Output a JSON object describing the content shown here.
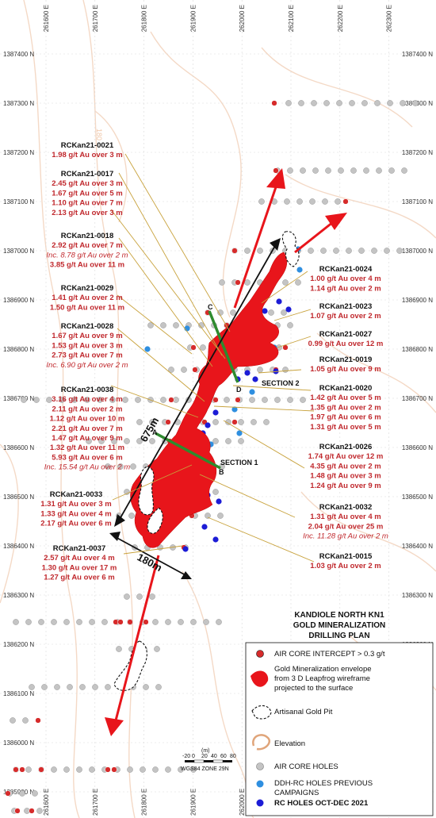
{
  "title_lines": [
    "KANDIOLE NORTH KN1",
    "GOLD MINERALIZATION",
    "DRILLING PLAN"
  ],
  "northings": [
    "1387400 N",
    "1387300 N",
    "1387200 N",
    "1387100 N",
    "1387000 N",
    "1386900 N",
    "1386800 N",
    "1386700 N",
    "1386600 N",
    "1386500 N",
    "1386400 N",
    "1386300 N",
    "1386200 N",
    "1386100 N",
    "1386000 N",
    "1385900 N"
  ],
  "eastings": [
    "261600 E",
    "261700 E",
    "261800 E",
    "261900 E",
    "262000 E",
    "262100 E",
    "262200 E",
    "262300 E"
  ],
  "contour_label": "180",
  "callouts": [
    {
      "name": "RCKan21-0021",
      "lines": [
        {
          "t": "1.98 g/t Au over 3 m",
          "i": false
        }
      ]
    },
    {
      "name": "RCKan21-0017",
      "lines": [
        {
          "t": "2.45 g/t Au over 3 m",
          "i": false
        },
        {
          "t": "1.67 g/t Au over 5 m",
          "i": false
        },
        {
          "t": "1.10 g/t Au over 7 m",
          "i": false
        },
        {
          "t": "2.13 g/t Au over 3 m",
          "i": false
        }
      ]
    },
    {
      "name": "RCKan21-0018",
      "lines": [
        {
          "t": "2.92 g/t Au over 7 m",
          "i": false
        },
        {
          "t": "Inc. 8.78 g/t Au over 2 m",
          "i": true
        },
        {
          "t": "3.85 g/t Au over 11 m",
          "i": false
        }
      ]
    },
    {
      "name": "RCKan21-0029",
      "lines": [
        {
          "t": "1.41 g/t Au over 2 m",
          "i": false
        },
        {
          "t": "1.50 g/t Au over 11 m",
          "i": false
        }
      ]
    },
    {
      "name": "RCKan21-0028",
      "lines": [
        {
          "t": "1.67 g/t Au over 9 m",
          "i": false
        },
        {
          "t": "1.53 g/t Au over 3 m",
          "i": false
        },
        {
          "t": "2.73 g/t Au over 7 m",
          "i": false
        },
        {
          "t": "Inc. 6.90 g/t Au over 2 m",
          "i": true
        }
      ]
    },
    {
      "name": "RCKan21-0038",
      "lines": [
        {
          "t": "3.16 g/t Au over 4 m",
          "i": false
        },
        {
          "t": "2.11 g/t Au over 2 m",
          "i": false
        },
        {
          "t": "1.12 g/t Au over 10 m",
          "i": false
        },
        {
          "t": "2.21 g/t Au over 7 m",
          "i": false
        },
        {
          "t": "1.47 g/t Au over 9 m",
          "i": false
        },
        {
          "t": "1.32 g/t Au over 11 m",
          "i": false
        },
        {
          "t": "5.93 g/t Au over 6 m",
          "i": false
        },
        {
          "t": "Inc. 15.54 g/t Au over 2 m",
          "i": true
        }
      ]
    },
    {
      "name": "RCKan21-0033",
      "lines": [
        {
          "t": "1.31 g/t Au over 3 m",
          "i": false
        },
        {
          "t": "1.33 g/t Au over 4 m",
          "i": false
        },
        {
          "t": "2.17 g/t Au over 6 m",
          "i": false
        }
      ]
    },
    {
      "name": "RCKan21-0037",
      "lines": [
        {
          "t": "2.57 g/t Au over 4 m",
          "i": false
        },
        {
          "t": "1.30 g/t Au over 17 m",
          "i": false
        },
        {
          "t": "1.27 g/t Au over 6 m",
          "i": false
        }
      ]
    },
    {
      "name": "RCKan21-0024",
      "lines": [
        {
          "t": "1.00 g/t Au over 4 m",
          "i": false
        },
        {
          "t": "1.14 g/t Au over 2 m",
          "i": false
        }
      ]
    },
    {
      "name": "RCKan21-0023",
      "lines": [
        {
          "t": "1.07 g/t Au over 2 m",
          "i": false
        }
      ]
    },
    {
      "name": "RCKan21-0027",
      "lines": [
        {
          "t": "0.99 g/t Au over 12 m",
          "i": false
        }
      ]
    },
    {
      "name": "RCKan21-0019",
      "lines": [
        {
          "t": "1.05 g/t Au over 9 m",
          "i": false
        }
      ]
    },
    {
      "name": "RCKan21-0020",
      "lines": [
        {
          "t": "1.42 g/t Au over 5 m",
          "i": false
        },
        {
          "t": "1.35 g/t Au over 2 m",
          "i": false
        },
        {
          "t": "1.97 g/t Au over 6 m",
          "i": false
        },
        {
          "t": "1.31 g/t Au over 5 m",
          "i": false
        }
      ]
    },
    {
      "name": "RCKan21-0026",
      "lines": [
        {
          "t": "1.74 g/t Au over 12 m",
          "i": false
        },
        {
          "t": "4.35 g/t Au over 2 m",
          "i": false
        },
        {
          "t": "1.48 g/t Au over 3 m",
          "i": false
        },
        {
          "t": "1.24 g/t Au over 9 m",
          "i": false
        }
      ]
    },
    {
      "name": "RCKan21-0032",
      "lines": [
        {
          "t": "1.31 g/t Au over 4 m",
          "i": false
        },
        {
          "t": "2.04 g/t Au over 25 m",
          "i": false
        },
        {
          "t": "Inc. 11.28 g/t Au over 2 m",
          "i": true
        }
      ]
    },
    {
      "name": "RCKan21-0015",
      "lines": [
        {
          "t": "1.03 g/t Au over 2 m",
          "i": false
        }
      ]
    }
  ],
  "sections": {
    "s1": "SECTION 1",
    "s2": "SECTION 2",
    "a": "A",
    "b": "B",
    "c": "C",
    "d": "D"
  },
  "dimensions": {
    "length": "675m",
    "width": "180m"
  },
  "scale": {
    "unit": "(m)",
    "ticks": [
      "-20",
      "0",
      "20",
      "40",
      "60",
      "80"
    ],
    "zone": "WGS84 ZONE 29N"
  },
  "legend": [
    {
      "symbol": "red-dot",
      "lines": [
        "AIR CORE INTERCEPT > 0.3 g/t"
      ],
      "bold": false
    },
    {
      "symbol": "envelope",
      "lines": [
        "Gold Mineralization envelope",
        "from 3 D Leapfrog wireframe",
        "projected to the surface"
      ],
      "bold": false
    },
    {
      "symbol": "pit",
      "lines": [
        "Artisanal Gold Pit"
      ],
      "bold": false
    },
    {
      "symbol": "elevation",
      "lines": [
        "Elevation"
      ],
      "bold": false
    },
    {
      "symbol": "grey-dot",
      "lines": [
        "AIR CORE HOLES"
      ],
      "bold": false
    },
    {
      "symbol": "lightblue-dot",
      "lines": [
        "DDH-RC HOLES PREVIOUS",
        "CAMPAIGNS"
      ],
      "bold": false
    },
    {
      "symbol": "blue-dot",
      "lines": [
        "RC HOLES OCT-DEC 2021"
      ],
      "bold": true
    }
  ],
  "colors": {
    "intercept": "#d62b2b",
    "envelope": "#e8151b",
    "arrow": "#e8151b",
    "grey_hole": "#c4c4c4",
    "prev_hole": "#2f8fe0",
    "rc_hole": "#1c1cd6",
    "leader": "#c8a23c",
    "contour": "#f0c8aa"
  }
}
